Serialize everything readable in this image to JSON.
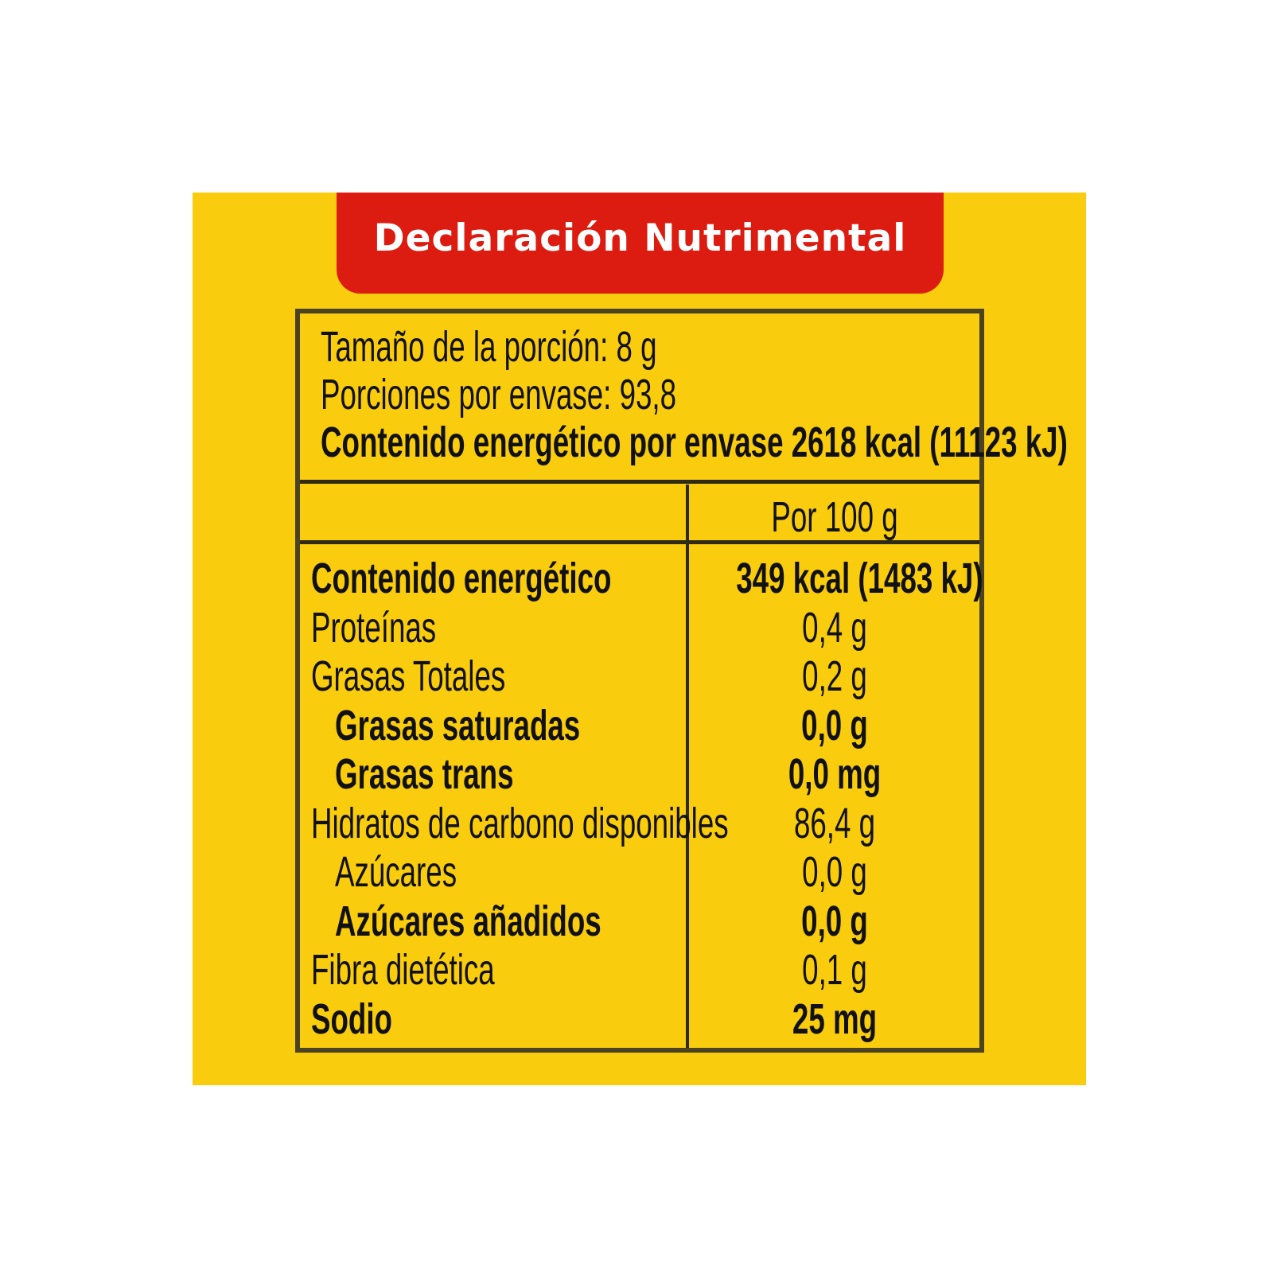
{
  "title": "Declaración Nutrimental",
  "serving_size": "Tamaño de la porción: 8 g",
  "servings_per_container": "Porciones por envase: 93,8",
  "energy_per_container": "Contenido energético por envase  2618 kcal (11123 kJ)",
  "column_header": "Por 100 g",
  "rows": [
    {
      "label": "Contenido energético",
      "value": "349 kcal (1483 kJ)",
      "bold": true
    },
    {
      "label": "Proteínas",
      "value": "0,4 g",
      "bold": false
    },
    {
      "label": "Grasas Totales",
      "value": "0,2 g",
      "bold": false
    },
    {
      "label": "Grasas saturadas",
      "value": "0,0 g",
      "bold": true
    },
    {
      "label": "Grasas trans",
      "value": "0,0 mg",
      "bold": true
    },
    {
      "label": "Hidratos de carbono disponibles",
      "value": "86,4 g",
      "bold": false
    },
    {
      "label": "Azúcares",
      "value": "0,0 g",
      "bold": false
    },
    {
      "label": "Azúcares añadidos",
      "value": "0,0 g",
      "bold": true
    },
    {
      "label": "Fibra dietética",
      "value": "0,1 g",
      "bold": false
    },
    {
      "label": "Sodio",
      "value": "25 mg",
      "bold": true
    }
  ],
  "colors": {
    "panel": "#f9cc0d",
    "banner": "#dc1c10",
    "border": "#4b4221"
  }
}
